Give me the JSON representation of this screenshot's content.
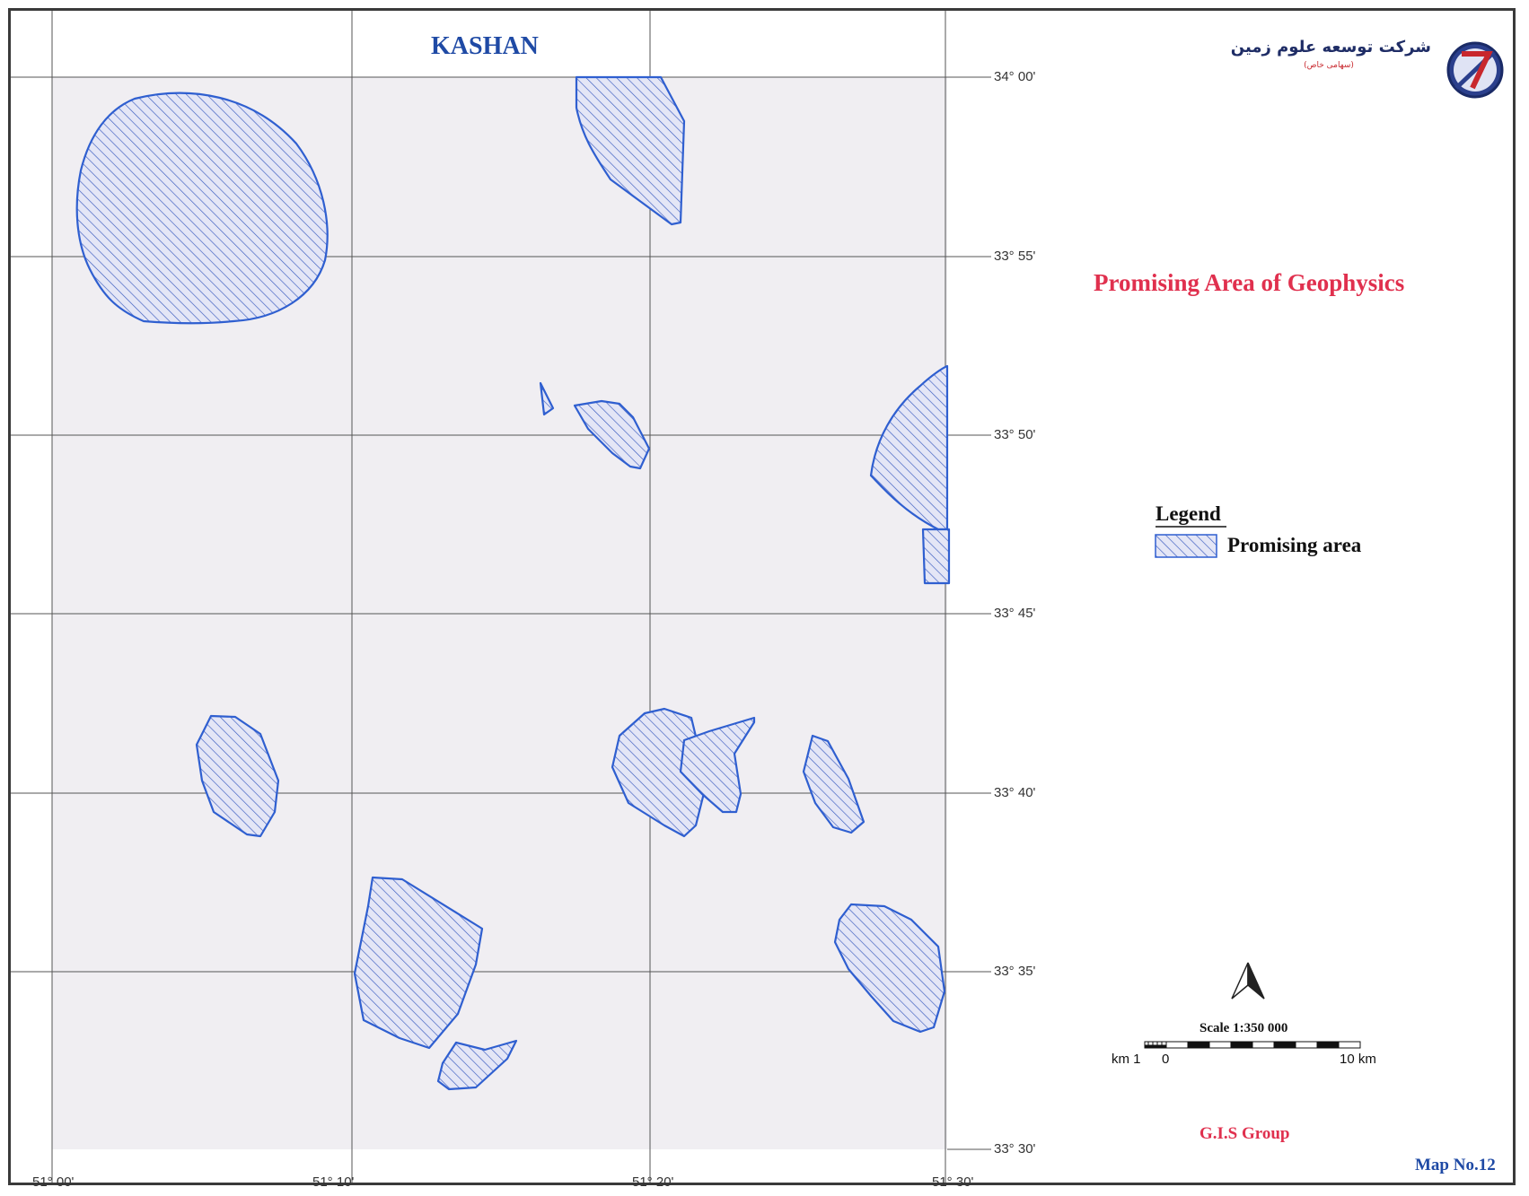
{
  "map_title": "KASHAN",
  "subject": "Promising Area of Geophysics",
  "company": {
    "name_fa": "شرکت توسعه علوم زمین",
    "sub_fa": "(سهامی خاص)"
  },
  "legend": {
    "title": "Legend",
    "items": [
      {
        "label": "Promising area",
        "pattern": "diagonal-hatch",
        "color": "#3a63c8"
      }
    ]
  },
  "scale": {
    "label": "Scale 1:350 000",
    "left_unit": "km 1",
    "zero": "0",
    "right_unit": "10 km"
  },
  "north_arrow": "north-arrow-icon",
  "credit": "G.I.S Group",
  "map_number": "Map No.12",
  "latitude_ticks": [
    "34° 00'",
    "33° 55'",
    "33° 50'",
    "33° 45'",
    "33° 40'",
    "33° 35'",
    "33° 30'"
  ],
  "longitude_ticks": [
    "51° 00'",
    "51° 10'",
    "51° 20'",
    "51° 30'"
  ],
  "colors": {
    "title": "#1f4aa5",
    "subject": "#e0304e",
    "polygon": "#2f5fd0",
    "map_bg": "#f0eef2",
    "grid": "#555555"
  }
}
